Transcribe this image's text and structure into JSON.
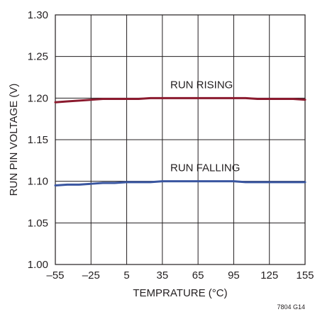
{
  "chart_data": {
    "type": "line",
    "xlabel": "TEMPRATURE (°C)",
    "ylabel": "RUN PIN VOLTAGE (V)",
    "figure_id": "7804 G14",
    "x_ticks": [
      -55,
      -25,
      5,
      35,
      65,
      95,
      125,
      155
    ],
    "y_ticks": [
      "1.00",
      "1.05",
      "1.10",
      "1.15",
      "1.20",
      "1.25",
      "1.30"
    ],
    "xlim": [
      -55,
      155
    ],
    "ylim": [
      1.0,
      1.3
    ],
    "grid": true,
    "series": [
      {
        "name": "RUN RISING",
        "color": "#8b1a2e",
        "x": [
          -55,
          -45,
          -35,
          -25,
          -15,
          -5,
          5,
          15,
          25,
          35,
          45,
          55,
          65,
          75,
          85,
          95,
          105,
          115,
          125,
          135,
          145,
          155
        ],
        "y": [
          1.195,
          1.196,
          1.197,
          1.198,
          1.199,
          1.199,
          1.199,
          1.199,
          1.2,
          1.2,
          1.2,
          1.2,
          1.2,
          1.2,
          1.2,
          1.2,
          1.2,
          1.199,
          1.199,
          1.199,
          1.199,
          1.198
        ]
      },
      {
        "name": "RUN FALLING",
        "color": "#3a56a0",
        "x": [
          -55,
          -45,
          -35,
          -25,
          -15,
          -5,
          5,
          15,
          25,
          35,
          45,
          55,
          65,
          75,
          85,
          95,
          105,
          115,
          125,
          135,
          145,
          155
        ],
        "y": [
          1.095,
          1.096,
          1.096,
          1.097,
          1.098,
          1.098,
          1.099,
          1.099,
          1.099,
          1.1,
          1.1,
          1.1,
          1.1,
          1.1,
          1.1,
          1.1,
          1.099,
          1.099,
          1.099,
          1.099,
          1.099,
          1.099
        ]
      }
    ]
  }
}
